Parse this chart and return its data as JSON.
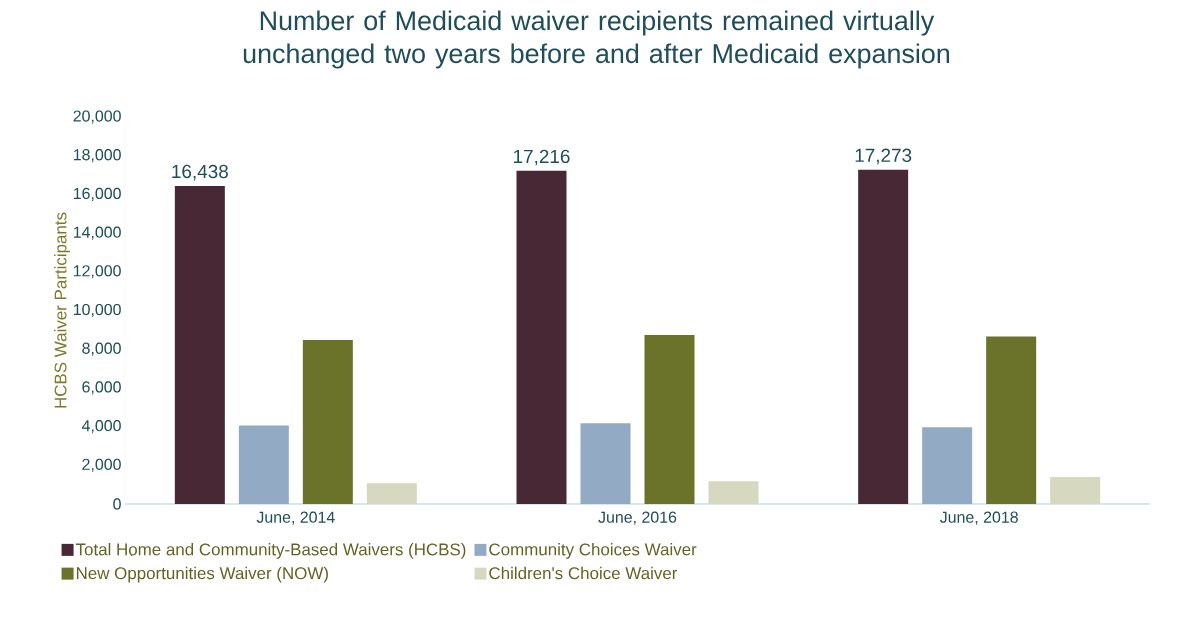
{
  "chart_data": {
    "type": "bar",
    "title": "Number of Medicaid waiver recipients remained virtually unchanged two years before and after Medicaid expansion",
    "ylabel": "HCBS Waiver Participants",
    "categories": [
      "June, 2014",
      "June, 2016",
      "June, 2018"
    ],
    "series": [
      {
        "name": "Total Home and Community-Based Waivers (HCBS)",
        "color": "#472834",
        "values": [
          16438,
          17216,
          17273
        ],
        "value_labels": [
          "16,438",
          "17,216",
          "17,273"
        ]
      },
      {
        "name": "Community Choices Waiver",
        "color": "#93aac4",
        "values": [
          4050,
          4170,
          3960
        ]
      },
      {
        "name": "New Opportunities Waiver (NOW)",
        "color": "#6b722a",
        "values": [
          8480,
          8730,
          8650
        ]
      },
      {
        "name": "Children's Choice Waiver",
        "color": "#d6d8c0",
        "values": [
          1070,
          1180,
          1390
        ]
      }
    ],
    "ylim": [
      0,
      20000
    ],
    "yticks": [
      {
        "value": 0,
        "label": "0"
      },
      {
        "value": 2000,
        "label": "2,000"
      },
      {
        "value": 4000,
        "label": "4,000"
      },
      {
        "value": 6000,
        "label": "6,000"
      },
      {
        "value": 8000,
        "label": "8,000"
      },
      {
        "value": 10000,
        "label": "10,000"
      },
      {
        "value": 12000,
        "label": "12,000"
      },
      {
        "value": 14000,
        "label": "14,000"
      },
      {
        "value": 16000,
        "label": "16,000"
      },
      {
        "value": 18000,
        "label": "18,000"
      },
      {
        "value": 20000,
        "label": "20,000"
      }
    ],
    "legend": "bottom"
  }
}
